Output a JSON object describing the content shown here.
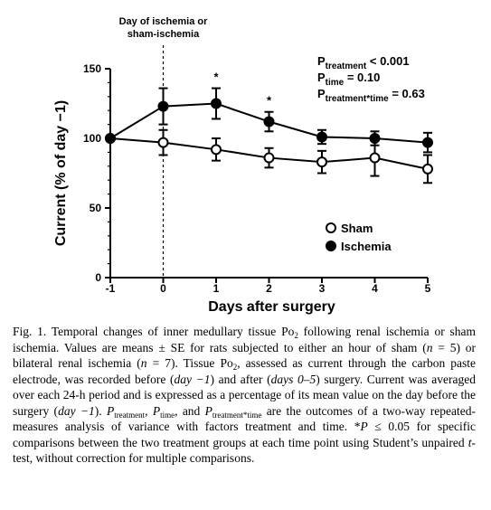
{
  "chart_data": {
    "type": "line",
    "xlabel": "Days after surgery",
    "ylabel": "Current (% of day −1)",
    "x": [
      -1,
      0,
      1,
      2,
      3,
      4,
      5
    ],
    "x_tick_labels": [
      "-1",
      "0",
      "1",
      "2",
      "3",
      "4",
      "5"
    ],
    "y_ticks": [
      0,
      50,
      100,
      150
    ],
    "y_tick_labels": [
      "0",
      "50",
      "100",
      "150"
    ],
    "xlim": [
      -1,
      5
    ],
    "ylim": [
      0,
      150
    ],
    "grid": false,
    "legend_position": "bottom-right",
    "series": [
      {
        "name": "Sham",
        "marker": "open-circle",
        "values": [
          100,
          97,
          92,
          86,
          83,
          86,
          78
        ],
        "se": [
          0,
          9,
          8,
          7,
          8,
          13,
          10
        ]
      },
      {
        "name": "Ischemia",
        "marker": "filled-circle",
        "values": [
          100,
          123,
          125,
          112,
          101,
          100,
          97
        ],
        "se": [
          0,
          13,
          11,
          7,
          5,
          5,
          7
        ]
      }
    ],
    "significance": [
      {
        "x": 1,
        "label": "*"
      },
      {
        "x": 2,
        "label": "*"
      }
    ],
    "vline": {
      "x": 0,
      "label_lines": [
        "Day of ischemia or",
        "sham-ischemia"
      ]
    },
    "stats": [
      {
        "p": "P",
        "sub": "treatment",
        "rest": " < 0.001"
      },
      {
        "p": "P",
        "sub": "time",
        "rest": " = 0.10"
      },
      {
        "p": "P",
        "sub": "treatment*time",
        "rest": " = 0.63"
      }
    ]
  },
  "caption": {
    "fig_label": "Fig. 1.",
    "s1": " Temporal changes of inner medullary tissue Po",
    "s1_sub": "2",
    "s2": " following renal ischemia or sham ischemia. Values are means ± SE for rats subjected to either an hour of sham (",
    "n1": "n",
    "s3": " = 5) or bilateral renal ischemia (",
    "n2": "n",
    "s4": " = 7). Tissue Po",
    "s4_sub": "2",
    "s5": ", assessed as current through the carbon paste electrode, was recorded before (",
    "day_m1_a": "day −1",
    "s6": ") and after (",
    "days_0_5": "days 0–5",
    "s7": ") surgery. Current was averaged over each 24-h period and is expressed as a percentage of its mean value on the day before the surgery (",
    "day_m1_b": "day −1",
    "s8": "). ",
    "p_a": "P",
    "p_a_sub": "treatment",
    "s9": ", ",
    "p_b": "P",
    "p_b_sub": "time",
    "s10": ", and ",
    "p_c": "P",
    "p_c_sub": "treatment*time",
    "s11": " are the outcomes of a two-way repeated-measures analysis of variance with factors treatment and time. *",
    "p_d": "P",
    "s12": " ≤ 0.05 for specific comparisons between the two treatment groups at each time point using Student’s unpaired ",
    "t": "t",
    "s13": "-test, without correction for multiple comparisons."
  }
}
